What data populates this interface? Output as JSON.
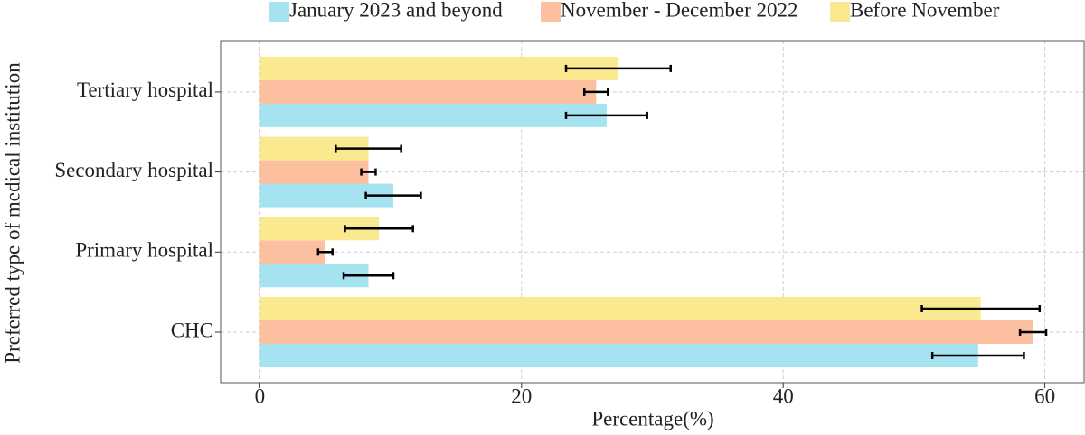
{
  "chart_data": {
    "type": "bar",
    "orientation": "horizontal",
    "x_label": "Percentage(%)",
    "y_label": "Preferred type of medical institution",
    "categories": [
      "CHC",
      "Primary hospital",
      "Secondary hospital",
      "Tertiary hospital"
    ],
    "series": [
      {
        "name": "January 2023 and beyond",
        "color": "#a6e3f0",
        "values": [
          54.9,
          8.3,
          10.2,
          26.5
        ],
        "errors": [
          3.5,
          1.9,
          2.1,
          3.1
        ]
      },
      {
        "name": "November - December 2022",
        "color": "#fcbf9f",
        "values": [
          59.1,
          5.0,
          8.3,
          25.7
        ],
        "errors": [
          1.0,
          0.55,
          0.55,
          0.9
        ]
      },
      {
        "name": "Before November",
        "color": "#fbe98f",
        "values": [
          55.1,
          9.1,
          8.3,
          27.4
        ],
        "errors": [
          4.5,
          2.6,
          2.5,
          4.0
        ]
      }
    ],
    "xlim": [
      -3,
      63
    ],
    "xticks": [
      0,
      20,
      40,
      60
    ],
    "grid": true,
    "legend": "top"
  }
}
